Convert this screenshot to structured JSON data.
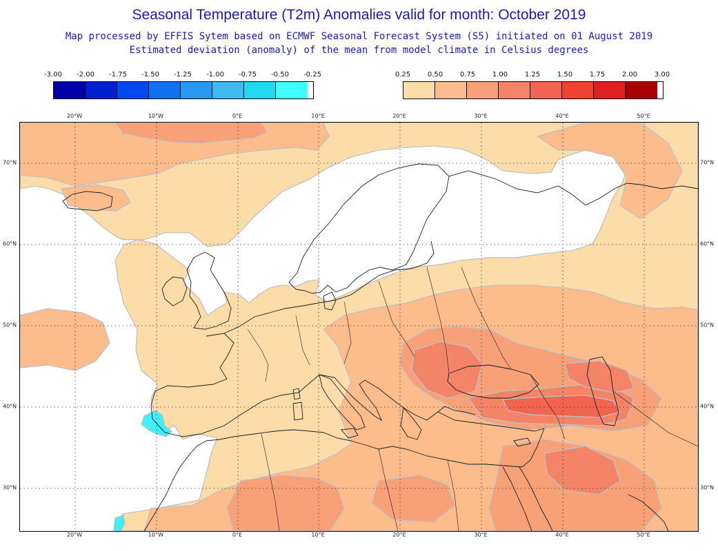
{
  "header": {
    "title": "Seasonal Temperature (T2m) Anomalies valid for month: October 2019",
    "subtitle": "Map processed by EFFIS Sytem based on ECMWF Seasonal Forecast System (S5) initiated on 01 August 2019",
    "description": "Estimated deviation (anomaly) of the mean from model climate in Celsius degrees"
  },
  "legend_negative": {
    "labels": [
      "-3.00",
      "-2.00",
      "-1.75",
      "-1.50",
      "-1.25",
      "-1.00",
      "-0.75",
      "-0.50",
      "-0.25"
    ],
    "colors": [
      "#0000a8",
      "#0020d0",
      "#0048f0",
      "#1070f0",
      "#2898f0",
      "#40b8f0",
      "#20d8f0",
      "#40ffff"
    ]
  },
  "legend_positive": {
    "labels": [
      "0.25",
      "0.50",
      "0.75",
      "1.00",
      "1.25",
      "1.50",
      "1.75",
      "2.00",
      "3.00"
    ],
    "colors": [
      "#fcdca8",
      "#fcbc8c",
      "#f8a078",
      "#f48468",
      "#f06450",
      "#f04030",
      "#e02020",
      "#a80000"
    ]
  },
  "map": {
    "longitude_labels": [
      "20°W",
      "10°W",
      "0°E",
      "10°E",
      "20°E",
      "30°E",
      "40°E",
      "50°E"
    ],
    "latitude_labels": [
      "70°N",
      "60°N",
      "50°N",
      "40°N",
      "30°N"
    ],
    "colors": {
      "none": "#ffffff",
      "a025": "#fcdca8",
      "a050": "#fcbc8c",
      "a075": "#f8a078",
      "a100": "#f48468",
      "a125": "#f06450",
      "neg": "#40f0f8",
      "coast": "#1a1a1a",
      "grid": "#333333",
      "contour": "#c0c0c0"
    }
  }
}
